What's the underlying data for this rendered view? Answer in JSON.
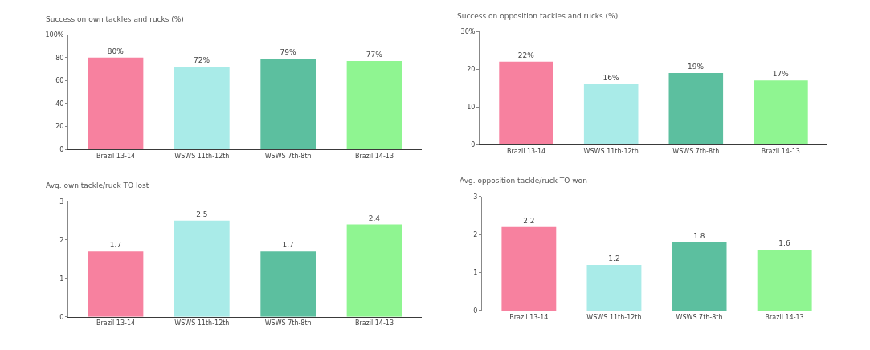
{
  "chart_data": [
    {
      "type": "bar",
      "title": "Success on own tackles and rucks (%)",
      "categories": [
        "Brazil 13-14",
        "WSWS 11th-12th",
        "WSWS 7th-8th",
        "Brazil 14-13"
      ],
      "values": [
        80,
        72,
        79,
        77
      ],
      "colors": [
        "#f7819f",
        "#a9ebe8",
        "#5cbf9f",
        "#8ff591"
      ],
      "value_labels": [
        "80%",
        "72%",
        "79%",
        "77%"
      ],
      "ylim": [
        0,
        100
      ],
      "yticks": [
        0,
        20,
        40,
        60,
        80,
        {
          "value": 100,
          "label": "100%"
        }
      ]
    },
    {
      "type": "bar",
      "title": "Success on opposition tackles and rucks (%)",
      "categories": [
        "Brazil 13-14",
        "WSWS 11th-12th",
        "WSWS 7th-8th",
        "Brazil 14-13"
      ],
      "values": [
        22,
        16,
        19,
        17
      ],
      "colors": [
        "#f7819f",
        "#a9ebe8",
        "#5cbf9f",
        "#8ff591"
      ],
      "value_labels": [
        "22%",
        "16%",
        "19%",
        "17%"
      ],
      "ylim": [
        0,
        30
      ],
      "yticks": [
        0,
        10,
        20,
        {
          "value": 30,
          "label": "30%"
        }
      ]
    },
    {
      "type": "bar",
      "title": "Avg. own tackle/ruck TO lost",
      "categories": [
        "Brazil 13-14",
        "WSWS 11th-12th",
        "WSWS 7th-8th",
        "Brazil 14-13"
      ],
      "values": [
        1.7,
        2.5,
        1.7,
        2.4
      ],
      "colors": [
        "#f7819f",
        "#a9ebe8",
        "#5cbf9f",
        "#8ff591"
      ],
      "data_labels": true,
      "ylim": [
        0,
        3
      ],
      "yticks": [
        0,
        1,
        2,
        3
      ]
    },
    {
      "type": "bar",
      "title": "Avg. opposition tackle/ruck TO won",
      "categories": [
        "Brazil 13-14",
        "WSWS 11th-12th",
        "WSWS 7th-8th",
        "Brazil 14-13"
      ],
      "values": [
        2.2,
        1.2,
        1.8,
        1.6
      ],
      "colors": [
        "#f7819f",
        "#a9ebe8",
        "#5cbf9f",
        "#8ff591"
      ],
      "data_labels": true,
      "ylim": [
        0,
        3
      ],
      "yticks": [
        0,
        1,
        2,
        3
      ]
    }
  ]
}
